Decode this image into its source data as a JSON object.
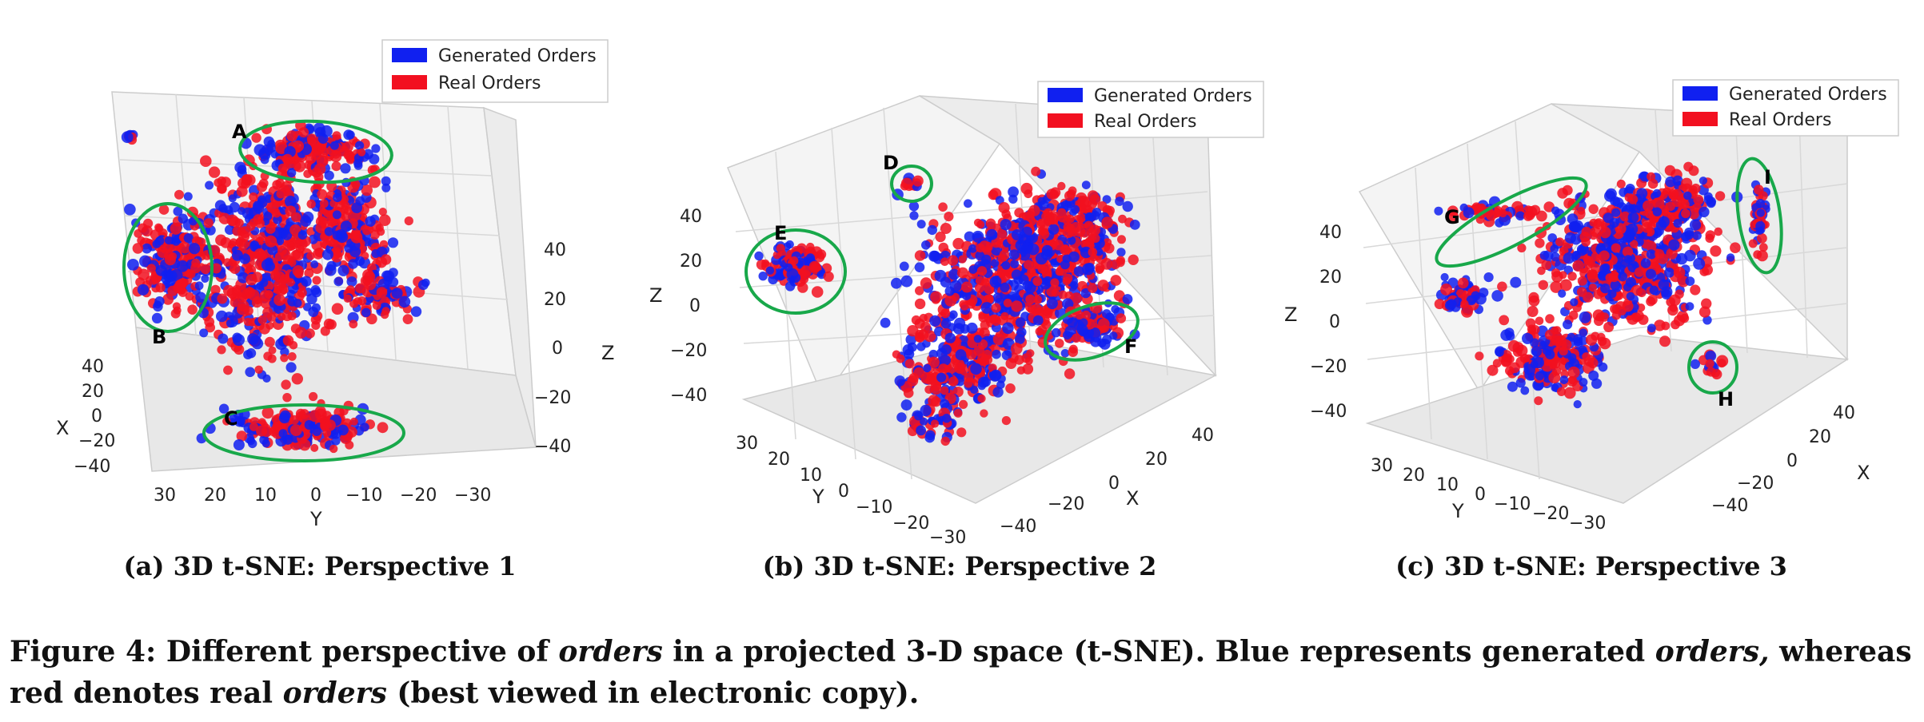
{
  "legend": {
    "generated_label": "Generated Orders",
    "real_label": "Real Orders",
    "generated_color": "#1020f0",
    "real_color": "#f21020"
  },
  "annotation_color": "#18a84a",
  "chart_data": [
    {
      "type": "scatter",
      "subcaption": "(a) 3D t-SNE: Perspective 1",
      "series": [
        {
          "name": "Generated Orders",
          "color": "#1020f0"
        },
        {
          "name": "Real Orders",
          "color": "#f21020"
        }
      ],
      "axes": {
        "x_label": "X",
        "y_label": "Y",
        "z_label": "Z",
        "x_ticks": [
          "40",
          "20",
          "0",
          "−20",
          "−40"
        ],
        "y_ticks": [
          "30",
          "20",
          "10",
          "0",
          "−10",
          "−20",
          "−30"
        ],
        "z_ticks": [
          "40",
          "20",
          "0",
          "−20",
          "−40"
        ]
      },
      "annotations": [
        "A",
        "B",
        "C"
      ],
      "legend_position": "top-right"
    },
    {
      "type": "scatter",
      "subcaption": "(b) 3D t-SNE: Perspective 2",
      "series": [
        {
          "name": "Generated Orders",
          "color": "#1020f0"
        },
        {
          "name": "Real Orders",
          "color": "#f21020"
        }
      ],
      "axes": {
        "x_label": "X",
        "y_label": "Y",
        "z_label": "Z",
        "x_ticks": [
          "40",
          "20",
          "0",
          "−20",
          "−40"
        ],
        "y_ticks": [
          "30",
          "20",
          "10",
          "0",
          "−10",
          "−20",
          "−30"
        ],
        "z_ticks": [
          "40",
          "20",
          "0",
          "−20",
          "−40"
        ]
      },
      "annotations": [
        "D",
        "E",
        "F"
      ],
      "legend_position": "top-right"
    },
    {
      "type": "scatter",
      "subcaption": "(c) 3D t-SNE: Perspective 3",
      "series": [
        {
          "name": "Generated Orders",
          "color": "#1020f0"
        },
        {
          "name": "Real Orders",
          "color": "#f21020"
        }
      ],
      "axes": {
        "x_label": "X",
        "y_label": "Y",
        "z_label": "Z",
        "x_ticks": [
          "40",
          "20",
          "0",
          "−20",
          "−40"
        ],
        "y_ticks": [
          "30",
          "20",
          "10",
          "0",
          "−10",
          "−20",
          "−30"
        ],
        "z_ticks": [
          "40",
          "20",
          "0",
          "−20",
          "−40"
        ]
      },
      "annotations": [
        "G",
        "H",
        "I"
      ],
      "legend_position": "top-right"
    }
  ],
  "caption": {
    "p1": "Figure 4: Different perspective of ",
    "i1": "orders",
    "p2": " in a projected 3-D space (t-SNE). Blue represents generated ",
    "i2": "orders,",
    "p3": " whereas red denotes real ",
    "i3": "orders",
    "p4": " (best viewed in electronic copy)."
  }
}
